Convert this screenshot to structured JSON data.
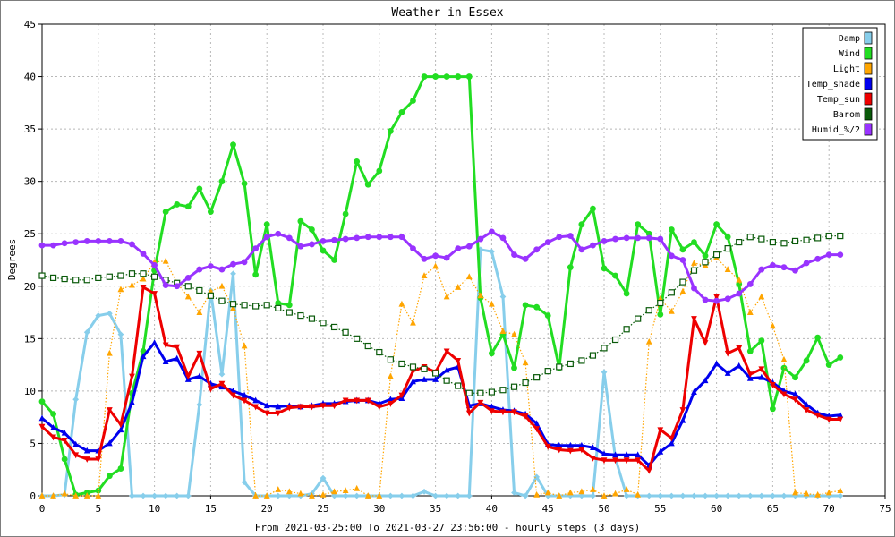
{
  "chart_data": {
    "type": "line",
    "title": "Weather in Essex",
    "xlabel": "From 2021-03-25:00 To 2021-03-27 23:56:00 - hourly steps (3 days)",
    "ylabel": "Degrees",
    "xlim": [
      0,
      75
    ],
    "ylim": [
      0,
      45
    ],
    "xticks": [
      0,
      5,
      10,
      15,
      20,
      25,
      30,
      35,
      40,
      45,
      50,
      55,
      60,
      65,
      70,
      75
    ],
    "yticks": [
      0,
      5,
      10,
      15,
      20,
      25,
      30,
      35,
      40,
      45
    ],
    "grid": true,
    "legend_position": "top-right",
    "x": [
      0,
      1,
      2,
      3,
      4,
      5,
      6,
      7,
      8,
      9,
      10,
      11,
      12,
      13,
      14,
      15,
      16,
      17,
      18,
      19,
      20,
      21,
      22,
      23,
      24,
      25,
      26,
      27,
      28,
      29,
      30,
      31,
      32,
      33,
      34,
      35,
      36,
      37,
      38,
      39,
      40,
      41,
      42,
      43,
      44,
      45,
      46,
      47,
      48,
      49,
      50,
      51,
      52,
      53,
      54,
      55,
      56,
      57,
      58,
      59,
      60,
      61,
      62,
      63,
      64,
      65,
      66,
      67,
      68,
      69,
      70,
      71
    ],
    "series": [
      {
        "name": "Damp",
        "color": "#87ceeb",
        "marker": "diamond",
        "style": "thick",
        "values": [
          0,
          0,
          0.1,
          9.2,
          15.6,
          17.2,
          17.4,
          15.4,
          0,
          0,
          0,
          0,
          0,
          0,
          8.7,
          19.6,
          11.6,
          21.2,
          1.3,
          0,
          0,
          0,
          0,
          0,
          0.2,
          1.7,
          0,
          0,
          0,
          0,
          0,
          0,
          0,
          0,
          0.4,
          0,
          0,
          0,
          0,
          23.5,
          23.3,
          19,
          0.3,
          0,
          1.8,
          0,
          0,
          0,
          0,
          0,
          11.8,
          3.6,
          0,
          0,
          0,
          0,
          0,
          0,
          0,
          0,
          0,
          0,
          0,
          0,
          0,
          0,
          0,
          0,
          0,
          0,
          0,
          0
        ]
      },
      {
        "name": "Wind",
        "color": "#22dd22",
        "marker": "circle",
        "style": "thick",
        "values": [
          9,
          7.8,
          3.5,
          0.1,
          0.3,
          0.5,
          1.9,
          2.6,
          9.8,
          13.8,
          21.5,
          27.1,
          27.8,
          27.6,
          29.3,
          27.1,
          30,
          33.5,
          29.8,
          21.1,
          25.9,
          18.4,
          18.2,
          26.2,
          25.4,
          23.4,
          22.5,
          26.9,
          31.9,
          29.7,
          31,
          34.8,
          36.6,
          37.7,
          40,
          40,
          40,
          40,
          40,
          18.9,
          13.6,
          15.4,
          12.2,
          18.2,
          18,
          17.2,
          12.2,
          21.8,
          25.9,
          27.4,
          21.7,
          21,
          19.3,
          25.9,
          25,
          17.3,
          25.4,
          23.5,
          24.2,
          22.9,
          25.9,
          24.7,
          20.2,
          13.8,
          14.8,
          8.3,
          12.2,
          11.3,
          12.9,
          15.1,
          12.5,
          13.2
        ]
      },
      {
        "name": "Light",
        "color": "#ffa500",
        "marker": "triangle",
        "style": "dotted",
        "values": [
          0,
          0,
          0.2,
          0,
          0,
          0,
          13.6,
          19.7,
          20.1,
          20.7,
          22.3,
          22.4,
          20.3,
          19,
          17.5,
          19.5,
          20,
          17.9,
          14.3,
          0,
          0,
          0.6,
          0.4,
          0.2,
          0,
          0.1,
          0.4,
          0.5,
          0.7,
          0,
          0,
          11.4,
          18.3,
          16.5,
          21,
          21.9,
          19,
          19.9,
          20.9,
          19.1,
          18.3,
          15.7,
          15.4,
          12.7,
          0.1,
          0.3,
          0,
          0.3,
          0.4,
          0.6,
          0,
          0.2,
          0.6,
          0.1,
          14.7,
          18.8,
          17.6,
          19.5,
          22.2,
          22,
          22.7,
          21.6,
          20.6,
          17.5,
          19,
          16.2,
          13,
          0.3,
          0.2,
          0.1,
          0.3,
          0.5
        ]
      },
      {
        "name": "Temp_shade",
        "color": "#0000ee",
        "marker": "triangle",
        "style": "thick",
        "values": [
          7.4,
          6.5,
          6,
          4.9,
          4.3,
          4.3,
          5,
          6.3,
          8.9,
          13.3,
          14.6,
          12.8,
          13.1,
          11.1,
          11.4,
          10.7,
          10.4,
          10,
          9.6,
          9.1,
          8.6,
          8.5,
          8.6,
          8.5,
          8.6,
          8.8,
          8.8,
          9,
          9.1,
          9.1,
          8.8,
          9.2,
          9.3,
          10.9,
          11.1,
          11.1,
          12,
          12.3,
          8.6,
          8.8,
          8.5,
          8.2,
          8.1,
          7.8,
          6.9,
          4.9,
          4.8,
          4.8,
          4.8,
          4.6,
          4,
          3.9,
          3.9,
          3.9,
          2.9,
          4.2,
          5,
          7.2,
          9.9,
          11,
          12.6,
          11.7,
          12.4,
          11.2,
          11.3,
          10.8,
          10,
          9.7,
          8.7,
          7.9,
          7.6,
          7.7
        ]
      },
      {
        "name": "Temp_sun",
        "color": "#ee0000",
        "marker": "inverted-triangle",
        "style": "thick",
        "values": [
          6.6,
          5.6,
          5.3,
          3.9,
          3.5,
          3.5,
          8.2,
          6.8,
          11.4,
          19.9,
          19.3,
          14.4,
          14.2,
          11.4,
          13.6,
          10.2,
          10.7,
          9.6,
          9.1,
          8.5,
          7.9,
          7.9,
          8.4,
          8.5,
          8.5,
          8.6,
          8.6,
          9.1,
          9.1,
          9.1,
          8.5,
          8.8,
          9.6,
          11.9,
          12.3,
          11.8,
          13.8,
          12.9,
          7.9,
          8.9,
          8.1,
          8,
          8,
          7.6,
          6.4,
          4.7,
          4.4,
          4.3,
          4.4,
          3.6,
          3.4,
          3.4,
          3.4,
          3.4,
          2.4,
          6.3,
          5.5,
          8.2,
          16.9,
          14.6,
          19,
          13.6,
          14.1,
          11.6,
          12.1,
          10.6,
          9.7,
          9.2,
          8.2,
          7.7,
          7.3,
          7.3
        ]
      },
      {
        "name": "Barom",
        "color": "#0a5a0a",
        "marker": "square",
        "style": "dotted",
        "values": [
          21,
          20.8,
          20.7,
          20.6,
          20.6,
          20.8,
          20.9,
          21,
          21.2,
          21.2,
          20.9,
          20.6,
          20.3,
          20,
          19.6,
          19.1,
          18.6,
          18.3,
          18.2,
          18.1,
          18.2,
          17.9,
          17.5,
          17.2,
          16.9,
          16.5,
          16.1,
          15.6,
          15,
          14.3,
          13.7,
          13,
          12.6,
          12.3,
          12.1,
          11.7,
          11,
          10.5,
          9.8,
          9.8,
          9.9,
          10.1,
          10.4,
          10.8,
          11.3,
          11.9,
          12.3,
          12.6,
          12.9,
          13.4,
          14.1,
          14.9,
          15.9,
          16.9,
          17.7,
          18.4,
          19.4,
          20.4,
          21.5,
          22.3,
          23,
          23.6,
          24.2,
          24.7,
          24.5,
          24.2,
          24.1,
          24.3,
          24.4,
          24.6,
          24.8,
          24.8
        ]
      },
      {
        "name": "Humid_%/2",
        "color": "#9933ff",
        "marker": "circle",
        "style": "thick",
        "values": [
          23.9,
          23.9,
          24.1,
          24.2,
          24.3,
          24.3,
          24.3,
          24.3,
          24,
          23.1,
          22,
          20.1,
          20,
          20.8,
          21.6,
          21.9,
          21.6,
          22.1,
          22.3,
          23.6,
          24.7,
          25,
          24.6,
          23.8,
          24,
          24.3,
          24.4,
          24.5,
          24.6,
          24.7,
          24.7,
          24.7,
          24.7,
          23.6,
          22.6,
          22.9,
          22.7,
          23.6,
          23.8,
          24.5,
          25.2,
          24.6,
          23,
          22.6,
          23.5,
          24.2,
          24.7,
          24.8,
          23.5,
          23.9,
          24.3,
          24.5,
          24.6,
          24.6,
          24.6,
          24.5,
          22.9,
          22.5,
          19.8,
          18.7,
          18.6,
          18.8,
          19.3,
          20.2,
          21.6,
          22,
          21.8,
          21.5,
          22.2,
          22.6,
          23,
          23
        ]
      }
    ]
  }
}
